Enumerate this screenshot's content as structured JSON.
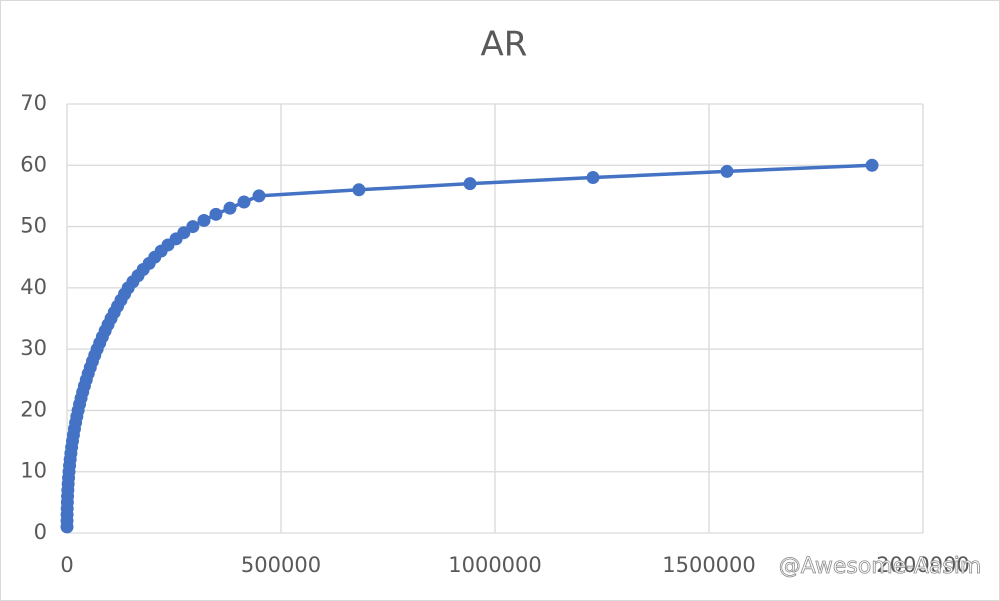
{
  "chart_data": {
    "type": "scatter-line",
    "title": "AR",
    "x": [
      16,
      90,
      244,
      496,
      858,
      1345,
      1966,
      2727,
      3645,
      4724,
      5974,
      7397,
      9009,
      10811,
      12809,
      15020,
      17428,
      20049,
      22899,
      25995,
      29320,
      32860,
      36640,
      40700,
      45030,
      49580,
      54410,
      59460,
      64810,
      70430,
      76410,
      82640,
      89150,
      95900,
      102900,
      110400,
      118100,
      126100,
      134500,
      143000,
      154000,
      166000,
      178000,
      192000,
      205000,
      220000,
      236000,
      255000,
      273000,
      294000,
      320000,
      348000,
      380800,
      413600,
      448600,
      682000,
      941600,
      1229000,
      1542000,
      1881000
    ],
    "series": [
      {
        "name": "AR",
        "color": "#4472c4",
        "values": [
          1,
          2,
          3,
          4,
          5,
          6,
          7,
          8,
          9,
          10,
          11,
          12,
          13,
          14,
          15,
          16,
          17,
          18,
          19,
          20,
          21,
          22,
          23,
          24,
          25,
          26,
          27,
          28,
          29,
          30,
          31,
          32,
          33,
          34,
          35,
          36,
          37,
          38,
          39,
          40,
          41,
          42,
          43,
          44,
          45,
          46,
          47,
          48,
          49,
          50,
          51,
          52,
          53,
          54,
          55,
          56,
          57,
          58,
          59,
          60
        ]
      }
    ],
    "xlim": [
      0,
      2000000
    ],
    "xticks": [
      0,
      500000,
      1000000,
      1500000,
      2000000
    ],
    "ylim": [
      0,
      70
    ],
    "yticks": [
      0,
      10,
      20,
      30,
      40,
      50,
      60,
      70
    ],
    "grid": true,
    "watermark": "@Awesome-Aasim"
  }
}
